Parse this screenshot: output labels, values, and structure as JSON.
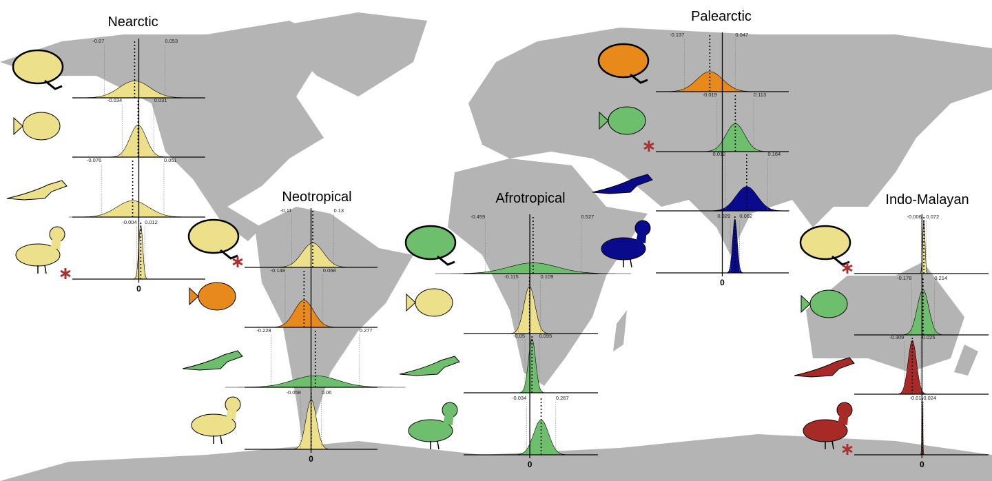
{
  "regions": [
    {
      "title": "Nearctic",
      "zero": 0,
      "xlim": [
        -0.135,
        0.135
      ],
      "panels": [
        {
          "color": "#ede08a",
          "ticks": [
            -0.07,
            0.053
          ],
          "significant": false
        },
        {
          "color": "#ede08a",
          "ticks": [
            -0.034,
            0.031
          ],
          "significant": false
        },
        {
          "color": "#ede08a",
          "ticks": [
            -0.076,
            0.051
          ],
          "significant": false
        },
        {
          "color": "#ede08a",
          "ticks": [
            -0.004,
            0.012
          ],
          "significant": true
        }
      ]
    },
    {
      "title": "Neotropical",
      "zero": 0,
      "xlim": [
        -0.38,
        0.38
      ],
      "panels": [
        {
          "color": "#ede08a",
          "ticks": [
            -0.11,
            0.13
          ],
          "significant": true
        },
        {
          "color": "#e8891c",
          "ticks": [
            -0.148,
            0.068
          ],
          "significant": false
        },
        {
          "color": "#6dbf6d",
          "ticks": [
            -0.228,
            0.277
          ],
          "significant": false
        },
        {
          "color": "#ede08a",
          "ticks": [
            -0.058,
            0.06
          ],
          "significant": false
        }
      ]
    },
    {
      "title": "Afrotropical",
      "zero": 0,
      "xlim": [
        -0.68,
        0.7
      ],
      "panels": [
        {
          "color": "#6dbf6d",
          "ticks": [
            -0.459,
            0.527
          ],
          "significant": false
        },
        {
          "color": "#ede08a",
          "ticks": [
            -0.115,
            0.109
          ],
          "significant": false
        },
        {
          "color": "#6dbf6d",
          "ticks": [
            -0.05,
            0.095
          ],
          "significant": false
        },
        {
          "color": "#6dbf6d",
          "ticks": [
            -0.034,
            0.267
          ],
          "significant": false
        }
      ]
    },
    {
      "title": "Palearctic",
      "zero": 0,
      "xlim": [
        -0.24,
        0.24
      ],
      "panels": [
        {
          "color": "#e8891c",
          "ticks": [
            -0.137,
            0.047
          ],
          "significant": false
        },
        {
          "color": "#6dbf6d",
          "ticks": [
            -0.019,
            0.113
          ],
          "significant": true
        },
        {
          "color": "#0a0a8c",
          "ticks": [
            0.012,
            0.164
          ],
          "significant": false
        },
        {
          "color": "#0a0a8c",
          "ticks": [
            0.029,
            0.062
          ],
          "significant": false
        }
      ]
    },
    {
      "title": "Indo-Malayan",
      "zero": 0,
      "xlim": [
        -1.17,
        1.15
      ],
      "panels": [
        {
          "color": "#ede08a",
          "ticks": [
            -0.006,
            0.072
          ],
          "significant": true
        },
        {
          "color": "#6dbf6d",
          "ticks": [
            -0.178,
            0.214
          ],
          "significant": false
        },
        {
          "color": "#a82a26",
          "ticks": [
            -0.309,
            -0.025
          ],
          "significant": false
        },
        {
          "color": "#a82a26",
          "ticks": [
            -0.01,
            0.024
          ],
          "significant": true
        }
      ]
    }
  ]
}
